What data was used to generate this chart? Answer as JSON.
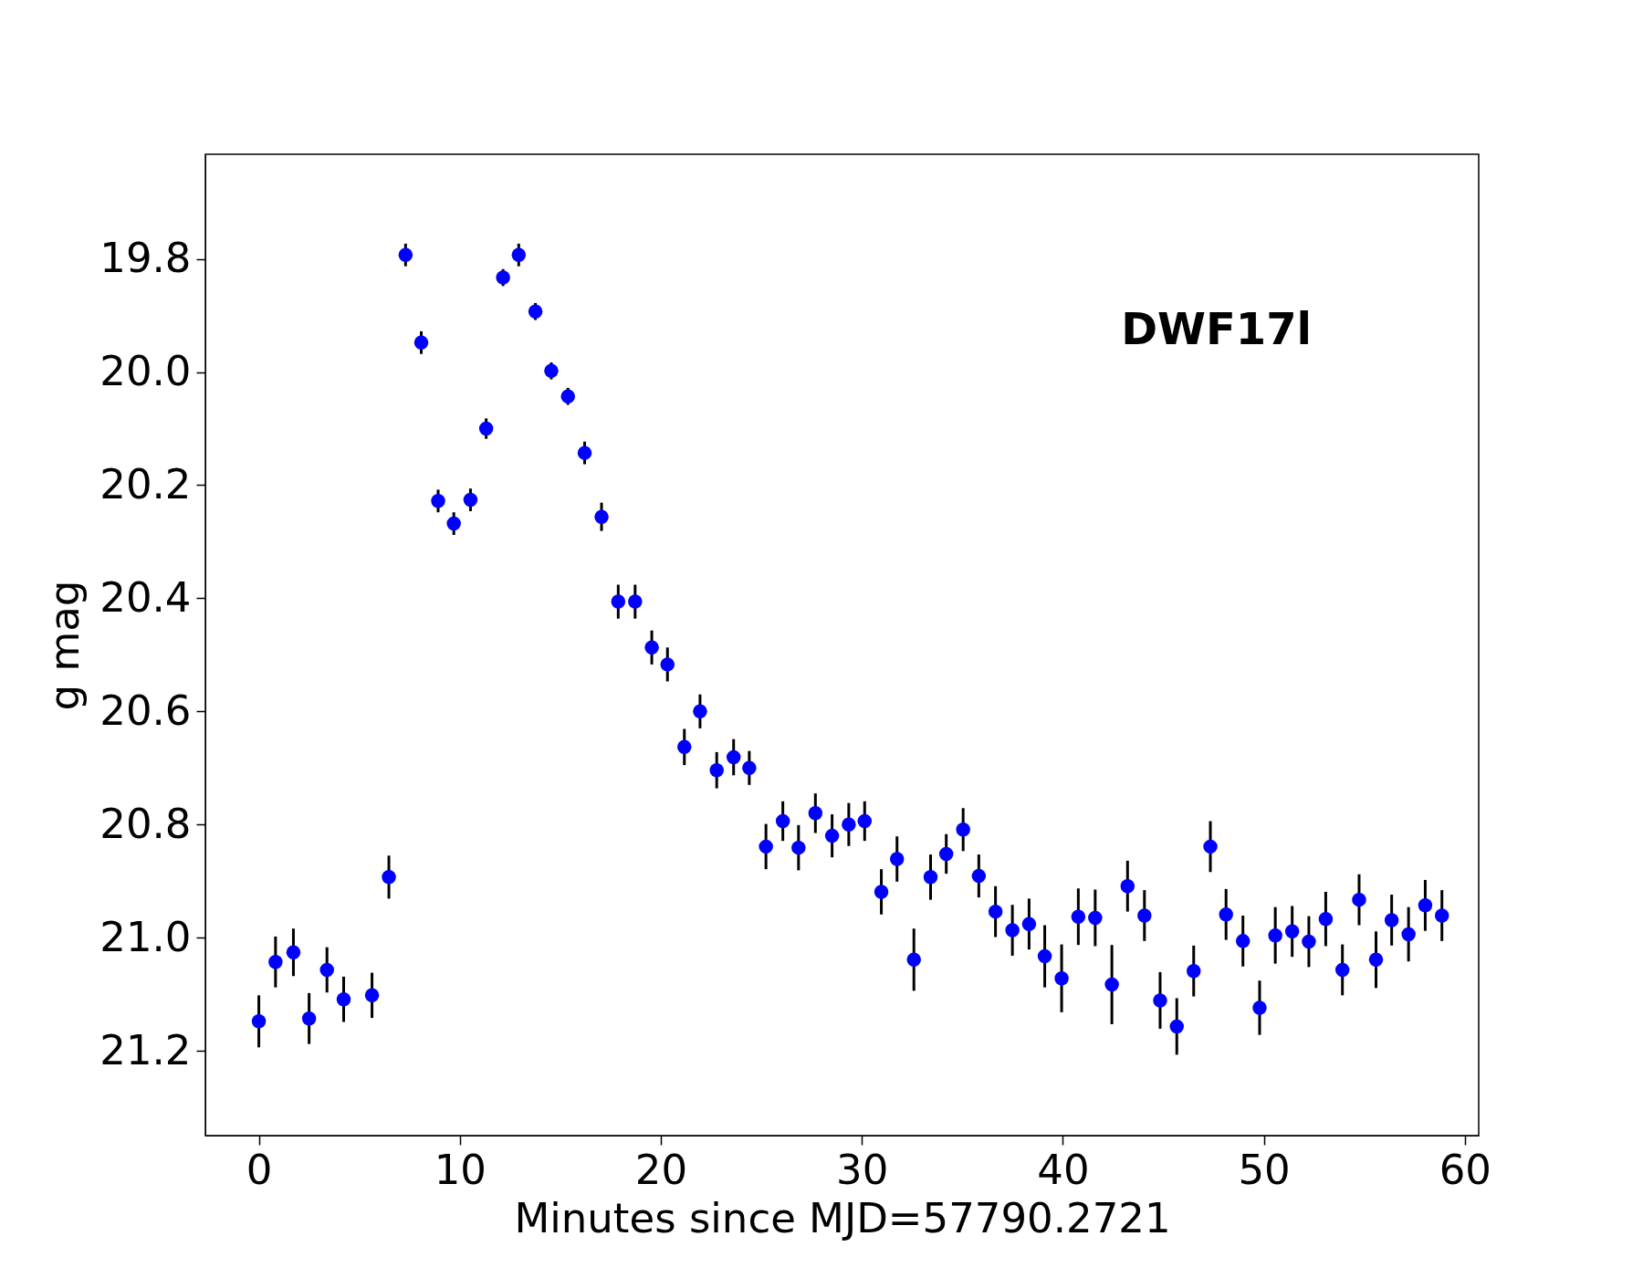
{
  "chart_data": {
    "type": "scatter",
    "xlabel": "Minutes since MJD=57790.2721",
    "ylabel": "g mag",
    "annotations": [
      "DWF17l"
    ],
    "xlim": [
      -2.66,
      60.69
    ],
    "xticks": [
      0,
      10,
      20,
      30,
      40,
      50,
      60
    ],
    "ylim": [
      21.35,
      19.615
    ],
    "yticks": [
      {
        "value": 19.8,
        "label": "19.8"
      },
      {
        "value": 20.0,
        "label": "20.0"
      },
      {
        "value": 20.2,
        "label": "20.2"
      },
      {
        "value": 20.4,
        "label": "20.4"
      },
      {
        "value": 20.6,
        "label": "20.6"
      },
      {
        "value": 20.8,
        "label": "20.8"
      },
      {
        "value": 21.0,
        "label": "21.0"
      },
      {
        "value": 21.2,
        "label": "21.2"
      }
    ],
    "grid": false,
    "marker": "circle",
    "series": [
      {
        "color": "#0000ff",
        "x": [
          0,
          0.83,
          1.72,
          2.5,
          3.39,
          4.22,
          5.63,
          6.47,
          7.3,
          8.08,
          8.92,
          9.7,
          10.53,
          11.31,
          12.15,
          12.93,
          13.76,
          14.55,
          15.38,
          16.21,
          17.05,
          17.88,
          18.72,
          19.55,
          20.33,
          21.17,
          21.95,
          22.78,
          23.62,
          24.4,
          25.23,
          26.07,
          26.85,
          27.69,
          28.52,
          29.35,
          30.14,
          30.97,
          31.75,
          32.59,
          33.42,
          34.2,
          35.04,
          35.82,
          36.65,
          37.49,
          38.32,
          39.1,
          39.94,
          40.77,
          41.61,
          42.44,
          43.22,
          44.06,
          44.84,
          45.67,
          46.51,
          47.34,
          48.12,
          48.96,
          49.79,
          50.57,
          51.41,
          52.24,
          53.08,
          53.91,
          54.74,
          55.58,
          56.36,
          57.2,
          58.03,
          58.86
        ],
        "values": [
          21.148,
          21.043,
          21.026,
          21.143,
          21.057,
          21.109,
          21.102,
          20.893,
          19.793,
          19.948,
          20.228,
          20.268,
          20.226,
          20.1,
          19.833,
          19.793,
          19.893,
          19.998,
          20.043,
          20.143,
          20.256,
          20.406,
          20.406,
          20.487,
          20.517,
          20.663,
          20.6,
          20.704,
          20.681,
          20.7,
          20.839,
          20.794,
          20.841,
          20.78,
          20.82,
          20.8,
          20.794,
          20.919,
          20.861,
          21.039,
          20.893,
          20.852,
          20.809,
          20.891,
          20.954,
          20.987,
          20.976,
          21.033,
          21.072,
          20.963,
          20.965,
          21.083,
          20.909,
          20.961,
          21.111,
          21.157,
          21.059,
          20.839,
          20.959,
          21.006,
          21.124,
          20.996,
          20.989,
          21.007,
          20.967,
          21.057,
          20.933,
          21.039,
          20.969,
          20.994,
          20.943,
          20.961
        ],
        "errors": [
          0.046,
          0.045,
          0.042,
          0.045,
          0.04,
          0.04,
          0.04,
          0.038,
          0.02,
          0.02,
          0.02,
          0.02,
          0.02,
          0.018,
          0.015,
          0.02,
          0.015,
          0.015,
          0.015,
          0.02,
          0.025,
          0.03,
          0.03,
          0.03,
          0.03,
          0.032,
          0.03,
          0.032,
          0.032,
          0.03,
          0.04,
          0.035,
          0.04,
          0.035,
          0.038,
          0.038,
          0.035,
          0.04,
          0.04,
          0.055,
          0.04,
          0.035,
          0.038,
          0.038,
          0.045,
          0.045,
          0.045,
          0.055,
          0.06,
          0.05,
          0.05,
          0.07,
          0.045,
          0.045,
          0.05,
          0.05,
          0.045,
          0.045,
          0.045,
          0.045,
          0.048,
          0.05,
          0.045,
          0.045,
          0.048,
          0.045,
          0.045,
          0.05,
          0.045,
          0.048,
          0.045,
          0.045
        ]
      }
    ]
  }
}
